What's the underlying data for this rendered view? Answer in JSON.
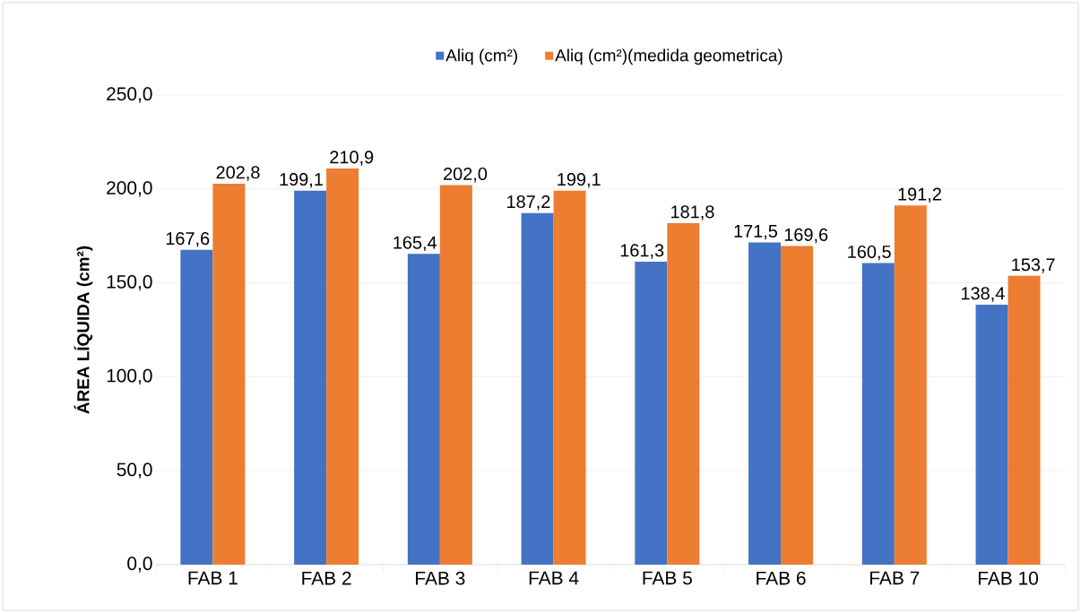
{
  "chart_data": {
    "type": "bar",
    "ylabel": "ÁREA LÍQUIDA (cm²)",
    "categories": [
      "FAB 1",
      "FAB 2",
      "FAB 3",
      "FAB 4",
      "FAB 5",
      "FAB 6",
      "FAB 7",
      "FAB 10"
    ],
    "series": [
      {
        "name": "Aliq  (cm²)",
        "color": "#4472c4",
        "values": [
          167.6,
          199.1,
          165.4,
          187.2,
          161.3,
          171.5,
          160.5,
          138.4
        ],
        "value_labels": [
          "167,6",
          "199,1",
          "165,4",
          "187,2",
          "161,3",
          "171,5",
          "160,5",
          "138,4"
        ]
      },
      {
        "name": "Aliq  (cm²)(medida geometrica)",
        "color": "#ed7d31",
        "values": [
          202.8,
          210.9,
          202.0,
          199.1,
          181.8,
          169.6,
          191.2,
          153.7
        ],
        "value_labels": [
          "202,8",
          "210,9",
          "202,0",
          "199,1",
          "181,8",
          "169,6",
          "191,2",
          "153,7"
        ]
      }
    ],
    "ylim": [
      0,
      250
    ],
    "yticks": [
      {
        "value": 0,
        "label": "0,0"
      },
      {
        "value": 50,
        "label": "50,0"
      },
      {
        "value": 100,
        "label": "100,0"
      },
      {
        "value": 150,
        "label": "150,0"
      },
      {
        "value": 200,
        "label": "200,0"
      },
      {
        "value": 250,
        "label": "250,0"
      }
    ],
    "grid": "y",
    "legend": "top"
  }
}
